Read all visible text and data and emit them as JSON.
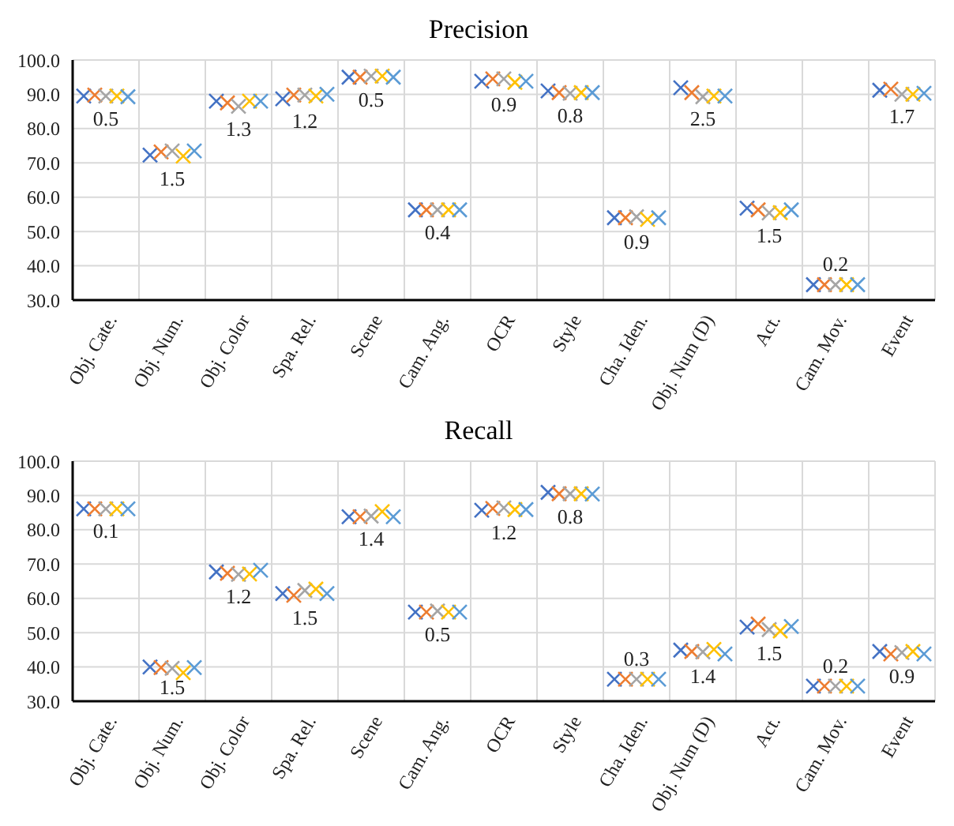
{
  "chart_data": [
    {
      "type": "scatter",
      "title": "Precision",
      "marker": "cross",
      "grid": true,
      "categories": [
        "Obj. Cate.",
        "Obj. Num.",
        "Obj. Color",
        "Spa. Rel.",
        "Scene",
        "Cam. Ang.",
        "OCR",
        "Style",
        "Cha. Iden.",
        "Obj. Num (D)",
        "Act.",
        "Cam. Mov.",
        "Event"
      ],
      "ylim": [
        30,
        100
      ],
      "yticks": [
        {
          "value": 30,
          "label": "30.0"
        },
        {
          "value": 40,
          "label": "40.0"
        },
        {
          "value": 50,
          "label": "50.0"
        },
        {
          "value": 60,
          "label": "60.0"
        },
        {
          "value": 70,
          "label": "70.0"
        },
        {
          "value": 80,
          "label": "80.0"
        },
        {
          "value": 90,
          "label": "90.0"
        },
        {
          "value": 100,
          "label": "100.0"
        }
      ],
      "series": [
        {
          "color": "#4472c4",
          "values": [
            89.5,
            72.3,
            88.0,
            88.7,
            95.0,
            56.3,
            93.8,
            91.0,
            54.0,
            91.9,
            56.8,
            34.5,
            91.2
          ]
        },
        {
          "color": "#ed7d31",
          "values": [
            89.8,
            73.2,
            87.5,
            89.8,
            95.0,
            56.3,
            94.5,
            90.5,
            54.0,
            90.5,
            56.3,
            34.5,
            91.5
          ]
        },
        {
          "color": "#a5a5a5",
          "values": [
            89.5,
            73.5,
            86.5,
            89.8,
            95.3,
            56.3,
            94.5,
            90.3,
            54.3,
            89.3,
            55.4,
            34.5,
            90.0
          ]
        },
        {
          "color": "#ffc000",
          "values": [
            89.5,
            72.0,
            88.0,
            89.5,
            95.3,
            56.3,
            93.5,
            90.5,
            53.5,
            89.5,
            55.5,
            34.5,
            90.0
          ]
        },
        {
          "color": "#5b9bd5",
          "values": [
            89.3,
            73.5,
            88.0,
            90.0,
            95.0,
            56.3,
            93.8,
            90.5,
            54.0,
            89.5,
            56.3,
            34.5,
            90.3
          ]
        }
      ],
      "annotations": [
        "0.5",
        "1.5",
        "1.3",
        "1.2",
        "0.5",
        "0.4",
        "0.9",
        "0.8",
        "0.9",
        "2.5",
        "1.5",
        "0.2",
        "1.7"
      ]
    },
    {
      "type": "scatter",
      "title": "Recall",
      "marker": "cross",
      "grid": true,
      "categories": [
        "Obj. Cate.",
        "Obj. Num.",
        "Obj. Color",
        "Spa. Rel.",
        "Scene",
        "Cam. Ang.",
        "OCR",
        "Style",
        "Cha. Iden.",
        "Obj. Num (D)",
        "Act.",
        "Cam. Mov.",
        "Event"
      ],
      "ylim": [
        30,
        100
      ],
      "yticks": [
        {
          "value": 30,
          "label": "30.0"
        },
        {
          "value": 40,
          "label": "40.0"
        },
        {
          "value": 50,
          "label": "50.0"
        },
        {
          "value": 60,
          "label": "60.0"
        },
        {
          "value": 70,
          "label": "70.0"
        },
        {
          "value": 80,
          "label": "80.0"
        },
        {
          "value": 90,
          "label": "90.0"
        },
        {
          "value": 100,
          "label": "100.0"
        }
      ],
      "series": [
        {
          "color": "#4472c4",
          "values": [
            86.1,
            40.0,
            67.7,
            61.4,
            83.8,
            56.0,
            85.7,
            90.9,
            36.4,
            44.9,
            51.6,
            34.4,
            44.5
          ]
        },
        {
          "color": "#ed7d31",
          "values": [
            86.1,
            39.8,
            67.3,
            60.9,
            83.8,
            56.0,
            86.2,
            90.5,
            36.4,
            44.5,
            52.5,
            34.4,
            43.8
          ]
        },
        {
          "color": "#a5a5a5",
          "values": [
            86.1,
            39.6,
            67.0,
            62.3,
            84.0,
            56.3,
            86.4,
            90.5,
            36.4,
            44.4,
            50.9,
            34.4,
            44.2
          ]
        },
        {
          "color": "#ffc000",
          "values": [
            86.1,
            38.3,
            67.1,
            62.7,
            85.3,
            56.0,
            85.9,
            90.5,
            36.4,
            45.1,
            50.5,
            34.4,
            44.5
          ]
        },
        {
          "color": "#5b9bd5",
          "values": [
            86.1,
            39.8,
            68.2,
            61.4,
            83.8,
            56.0,
            85.9,
            90.4,
            36.4,
            43.8,
            51.8,
            34.4,
            43.8
          ]
        }
      ],
      "annotations": [
        "0.1",
        "1.5",
        "1.2",
        "1.5",
        "1.4",
        "0.5",
        "1.2",
        "0.8",
        "0.3",
        "1.4",
        "1.5",
        "0.2",
        "0.9"
      ]
    }
  ]
}
